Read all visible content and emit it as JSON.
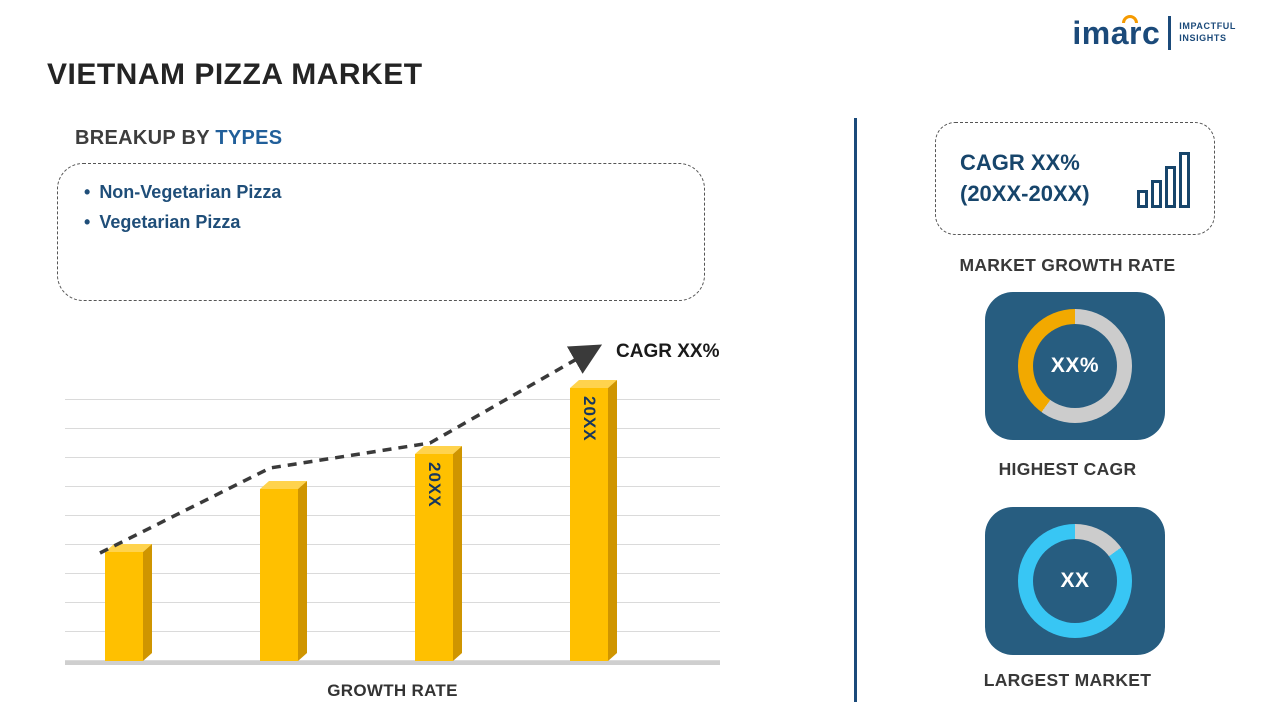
{
  "page": {
    "title": "VIETNAM PIZZA MARKET"
  },
  "logo": {
    "brand": "imarc",
    "tagline": [
      "IMPACTFUL",
      "INSIGHTS"
    ]
  },
  "breakup": {
    "heading_prefix": "BREAKUP BY ",
    "heading_highlight": "TYPES",
    "items": [
      "Non-Vegetarian Pizza",
      "Vegetarian Pizza"
    ]
  },
  "chart_data": {
    "type": "bar",
    "categories": [
      "",
      "",
      "20XX",
      "20XX"
    ],
    "values": [
      38,
      60,
      72,
      95
    ],
    "bar_labels": [
      "",
      "",
      "20XX",
      "20XX"
    ],
    "title": "",
    "xlabel": "GROWTH RATE",
    "ylabel": "",
    "ylim": [
      0,
      100
    ],
    "grid": true,
    "bar_color": "#ffc000",
    "bar_side_color": "#cf9500",
    "bar_top_color": "#ffd34d",
    "trend": {
      "label": "CAGR XX%",
      "style": "dashed-arrow",
      "color": "#3a3a3a"
    }
  },
  "panel": {
    "cagr_box": {
      "line1": "CAGR XX%",
      "line2": "(20XX-20XX)"
    },
    "market_growth_label": "MARKET GROWTH RATE",
    "highest_cagr": {
      "center_value": "XX%",
      "label": "HIGHEST CAGR",
      "arc_percent": 40,
      "arc_color": "#f2a900",
      "ring_base": "#cccccc"
    },
    "largest_market": {
      "center_value": "XX",
      "label": "LARGEST MARKET",
      "arc_percent": 85,
      "arc_color": "#38c6f4",
      "ring_base": "#cccccc"
    }
  },
  "colors": {
    "navy": "#1b4a7a",
    "card_bg": "#275d80",
    "divider": "#1b4a7a",
    "accent_gold": "#ffc000"
  }
}
